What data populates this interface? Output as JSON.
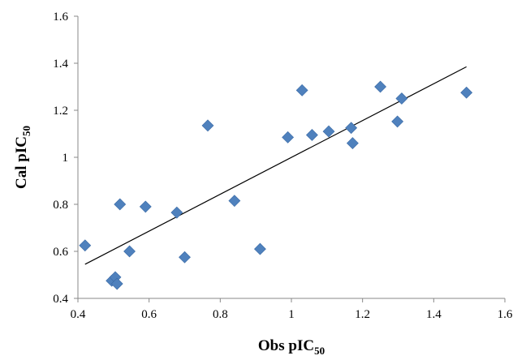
{
  "chart_data": {
    "type": "scatter",
    "title": "",
    "xlabel": {
      "main": "Obs pIC",
      "sub": "50"
    },
    "ylabel": {
      "main": "Cal pIC",
      "sub": "50"
    },
    "xlim": [
      0.4,
      1.6
    ],
    "ylim": [
      0.4,
      1.6
    ],
    "x_ticks": [
      "0.4",
      "0.6",
      "0.8",
      "1",
      "1.2",
      "1.4",
      "1.6"
    ],
    "y_ticks": [
      "0.4",
      "0.6",
      "0.8",
      "1",
      "1.2",
      "1.4",
      "1.6"
    ],
    "grid": false,
    "legend": "none",
    "marker": {
      "shape": "diamond",
      "color": "#4F81BD"
    },
    "line_color": "#000000",
    "series": [
      {
        "points": [
          {
            "x": 0.42,
            "y": 0.625
          },
          {
            "x": 0.495,
            "y": 0.475
          },
          {
            "x": 0.505,
            "y": 0.49
          },
          {
            "x": 0.51,
            "y": 0.462
          },
          {
            "x": 0.518,
            "y": 0.8
          },
          {
            "x": 0.545,
            "y": 0.6
          },
          {
            "x": 0.59,
            "y": 0.79
          },
          {
            "x": 0.678,
            "y": 0.765
          },
          {
            "x": 0.7,
            "y": 0.575
          },
          {
            "x": 0.765,
            "y": 1.135
          },
          {
            "x": 0.84,
            "y": 0.815
          },
          {
            "x": 0.912,
            "y": 0.61
          },
          {
            "x": 0.99,
            "y": 1.085
          },
          {
            "x": 1.03,
            "y": 1.285
          },
          {
            "x": 1.058,
            "y": 1.095
          },
          {
            "x": 1.105,
            "y": 1.11
          },
          {
            "x": 1.168,
            "y": 1.125
          },
          {
            "x": 1.172,
            "y": 1.06
          },
          {
            "x": 1.25,
            "y": 1.3
          },
          {
            "x": 1.298,
            "y": 1.152
          },
          {
            "x": 1.31,
            "y": 1.25
          },
          {
            "x": 1.492,
            "y": 1.275
          }
        ]
      }
    ],
    "trendline": {
      "from": {
        "x": 0.42,
        "y": 0.545
      },
      "to": {
        "x": 1.492,
        "y": 1.385
      }
    }
  }
}
